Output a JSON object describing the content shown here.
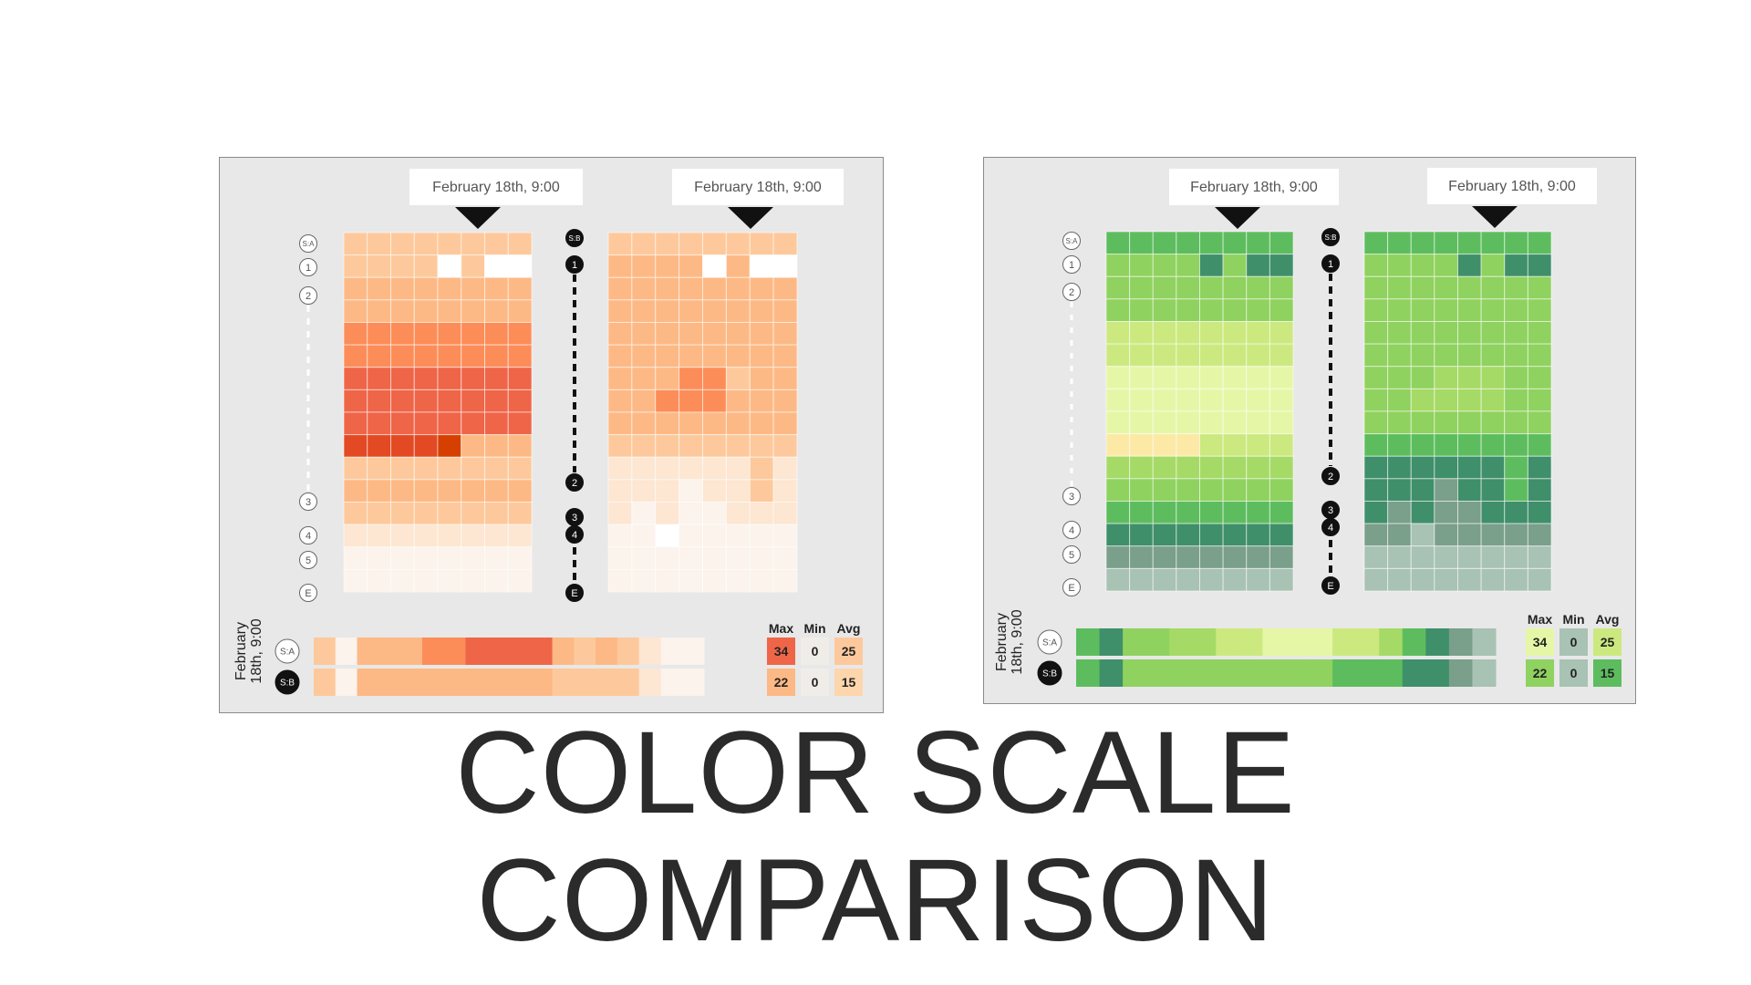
{
  "title": {
    "line1": "COLOR SCALE",
    "line2": "COMPARISON"
  },
  "legend": {
    "max": "Max",
    "min": "Min",
    "avg": "Avg"
  },
  "time_label": "February 18th, 9:00",
  "panels": [
    {
      "id": "orange",
      "callouts": [
        "February 18th, 9:00",
        "February 18th, 9:00"
      ],
      "stations_a": [
        "S:A",
        "1",
        "2",
        "3",
        "4",
        "5",
        "E"
      ],
      "stations_b": [
        "S:B",
        "1",
        "2",
        "3",
        "4",
        "E"
      ],
      "colors": [
        "#ffffff",
        "#fbf3ec",
        "#fde6d2",
        "#fdc99c",
        "#fdb985",
        "#fc8d59",
        "#ef6548",
        "#e34a24",
        "#d54000"
      ],
      "grid_a": [
        [
          3,
          3,
          3,
          3,
          3,
          3,
          3,
          3
        ],
        [
          3,
          3,
          3,
          3,
          0,
          3,
          0,
          0
        ],
        [
          4,
          4,
          4,
          4,
          4,
          4,
          4,
          4
        ],
        [
          4,
          4,
          4,
          4,
          4,
          4,
          4,
          4
        ],
        [
          5,
          5,
          5,
          5,
          5,
          5,
          5,
          5
        ],
        [
          5,
          5,
          5,
          5,
          5,
          5,
          5,
          5
        ],
        [
          6,
          6,
          6,
          6,
          6,
          6,
          6,
          6
        ],
        [
          6,
          6,
          6,
          6,
          6,
          6,
          6,
          6
        ],
        [
          6,
          6,
          6,
          6,
          6,
          6,
          6,
          6
        ],
        [
          7,
          7,
          7,
          7,
          8,
          4,
          4,
          4
        ],
        [
          3,
          3,
          3,
          3,
          3,
          3,
          3,
          3
        ],
        [
          4,
          4,
          4,
          4,
          4,
          4,
          4,
          4
        ],
        [
          3,
          3,
          3,
          3,
          3,
          3,
          3,
          3
        ],
        [
          2,
          2,
          2,
          2,
          2,
          2,
          2,
          2
        ],
        [
          1,
          1,
          1,
          1,
          1,
          1,
          1,
          1
        ],
        [
          1,
          1,
          1,
          1,
          1,
          1,
          1,
          1
        ]
      ],
      "grid_b": [
        [
          3,
          3,
          3,
          3,
          3,
          3,
          3,
          3
        ],
        [
          4,
          4,
          4,
          4,
          0,
          4,
          0,
          0
        ],
        [
          4,
          4,
          4,
          4,
          4,
          4,
          4,
          4
        ],
        [
          4,
          4,
          4,
          4,
          4,
          4,
          4,
          4
        ],
        [
          4,
          4,
          4,
          4,
          4,
          4,
          4,
          4
        ],
        [
          4,
          4,
          4,
          4,
          4,
          4,
          4,
          4
        ],
        [
          4,
          4,
          4,
          5,
          5,
          3,
          4,
          4
        ],
        [
          4,
          4,
          5,
          5,
          5,
          4,
          4,
          4
        ],
        [
          4,
          4,
          4,
          4,
          4,
          4,
          4,
          4
        ],
        [
          3,
          3,
          3,
          3,
          3,
          3,
          3,
          3
        ],
        [
          2,
          2,
          2,
          2,
          2,
          2,
          3,
          2
        ],
        [
          2,
          2,
          2,
          1,
          2,
          2,
          3,
          2
        ],
        [
          2,
          1,
          2,
          1,
          1,
          2,
          2,
          2
        ],
        [
          1,
          1,
          0,
          1,
          1,
          1,
          1,
          1
        ],
        [
          1,
          1,
          1,
          1,
          1,
          1,
          1,
          1
        ],
        [
          1,
          1,
          1,
          1,
          1,
          1,
          1,
          1
        ]
      ],
      "strip_a": [
        3,
        1,
        4,
        4,
        4,
        5,
        5,
        6,
        6,
        6,
        6,
        4,
        3,
        4,
        3,
        2,
        1,
        1
      ],
      "strip_b": [
        3,
        1,
        4,
        4,
        4,
        4,
        4,
        4,
        4,
        4,
        4,
        3,
        3,
        3,
        3,
        2,
        1,
        1
      ],
      "stats": [
        {
          "label": "S:A",
          "max": "34",
          "min": "0",
          "avg": "25",
          "max_color": "#ef6548",
          "min_color": "#f0ede9",
          "avg_color": "#fdc99c"
        },
        {
          "label": "S:B",
          "max": "22",
          "min": "0",
          "avg": "15",
          "max_color": "#fdb985",
          "min_color": "#f0ede9",
          "avg_color": "#fdd6ac"
        }
      ]
    },
    {
      "id": "green",
      "callouts": [
        "February 18th, 9:00",
        "February 18th, 9:00"
      ],
      "stations_a": [
        "S:A",
        "1",
        "2",
        "3",
        "4",
        "5",
        "E"
      ],
      "stations_b": [
        "S:B",
        "1",
        "2",
        "3",
        "4",
        "E"
      ],
      "colors": [
        "#5dbd5e",
        "#3f8f6a",
        "#8fd25f",
        "#a6da66",
        "#cce97f",
        "#e5f7a6",
        "#fbe9a5",
        "#7a9f8a",
        "#a8c2b4"
      ],
      "grid_a": [
        [
          0,
          0,
          0,
          0,
          0,
          0,
          0,
          0
        ],
        [
          2,
          2,
          2,
          2,
          1,
          2,
          1,
          1
        ],
        [
          2,
          2,
          2,
          2,
          2,
          2,
          2,
          2
        ],
        [
          2,
          2,
          2,
          2,
          2,
          2,
          2,
          2
        ],
        [
          4,
          4,
          4,
          4,
          4,
          4,
          4,
          4
        ],
        [
          4,
          4,
          4,
          4,
          4,
          4,
          4,
          4
        ],
        [
          5,
          5,
          5,
          5,
          5,
          5,
          5,
          5
        ],
        [
          5,
          5,
          5,
          5,
          5,
          5,
          5,
          5
        ],
        [
          5,
          5,
          5,
          5,
          5,
          5,
          5,
          5
        ],
        [
          6,
          6,
          6,
          6,
          4,
          4,
          4,
          4
        ],
        [
          3,
          3,
          3,
          3,
          3,
          3,
          3,
          3
        ],
        [
          2,
          2,
          2,
          2,
          2,
          2,
          2,
          2
        ],
        [
          0,
          0,
          0,
          0,
          0,
          0,
          0,
          0
        ],
        [
          1,
          1,
          1,
          1,
          1,
          1,
          1,
          1
        ],
        [
          7,
          7,
          7,
          7,
          7,
          7,
          7,
          7
        ],
        [
          8,
          8,
          8,
          8,
          8,
          8,
          8,
          8
        ]
      ],
      "grid_b": [
        [
          0,
          0,
          0,
          0,
          0,
          0,
          0,
          0
        ],
        [
          2,
          2,
          2,
          2,
          1,
          2,
          1,
          1
        ],
        [
          2,
          2,
          2,
          2,
          2,
          2,
          2,
          2
        ],
        [
          2,
          2,
          2,
          2,
          2,
          2,
          2,
          2
        ],
        [
          2,
          2,
          2,
          2,
          2,
          2,
          2,
          2
        ],
        [
          2,
          2,
          2,
          2,
          2,
          2,
          2,
          2
        ],
        [
          2,
          2,
          2,
          3,
          3,
          3,
          2,
          2
        ],
        [
          2,
          2,
          3,
          3,
          3,
          3,
          2,
          2
        ],
        [
          2,
          2,
          2,
          2,
          2,
          2,
          2,
          2
        ],
        [
          0,
          0,
          0,
          0,
          0,
          0,
          0,
          0
        ],
        [
          1,
          1,
          1,
          1,
          1,
          1,
          0,
          1
        ],
        [
          1,
          1,
          1,
          7,
          1,
          1,
          0,
          1
        ],
        [
          1,
          7,
          1,
          7,
          7,
          1,
          1,
          1
        ],
        [
          7,
          7,
          8,
          7,
          7,
          7,
          7,
          7
        ],
        [
          8,
          8,
          8,
          8,
          8,
          8,
          8,
          8
        ],
        [
          8,
          8,
          8,
          8,
          8,
          8,
          8,
          8
        ]
      ],
      "strip_a": [
        0,
        1,
        2,
        2,
        3,
        3,
        4,
        4,
        5,
        5,
        5,
        4,
        4,
        3,
        0,
        1,
        7,
        8
      ],
      "strip_b": [
        0,
        1,
        2,
        2,
        2,
        2,
        2,
        2,
        2,
        2,
        2,
        0,
        0,
        0,
        1,
        1,
        7,
        8
      ],
      "stats": [
        {
          "label": "S:A",
          "max": "34",
          "min": "0",
          "avg": "25",
          "max_color": "#e5f7a6",
          "min_color": "#a8c2b4",
          "avg_color": "#cce97f"
        },
        {
          "label": "S:B",
          "max": "22",
          "min": "0",
          "avg": "15",
          "max_color": "#8fd25f",
          "min_color": "#a8c2b4",
          "avg_color": "#5dbd5e"
        }
      ]
    }
  ]
}
